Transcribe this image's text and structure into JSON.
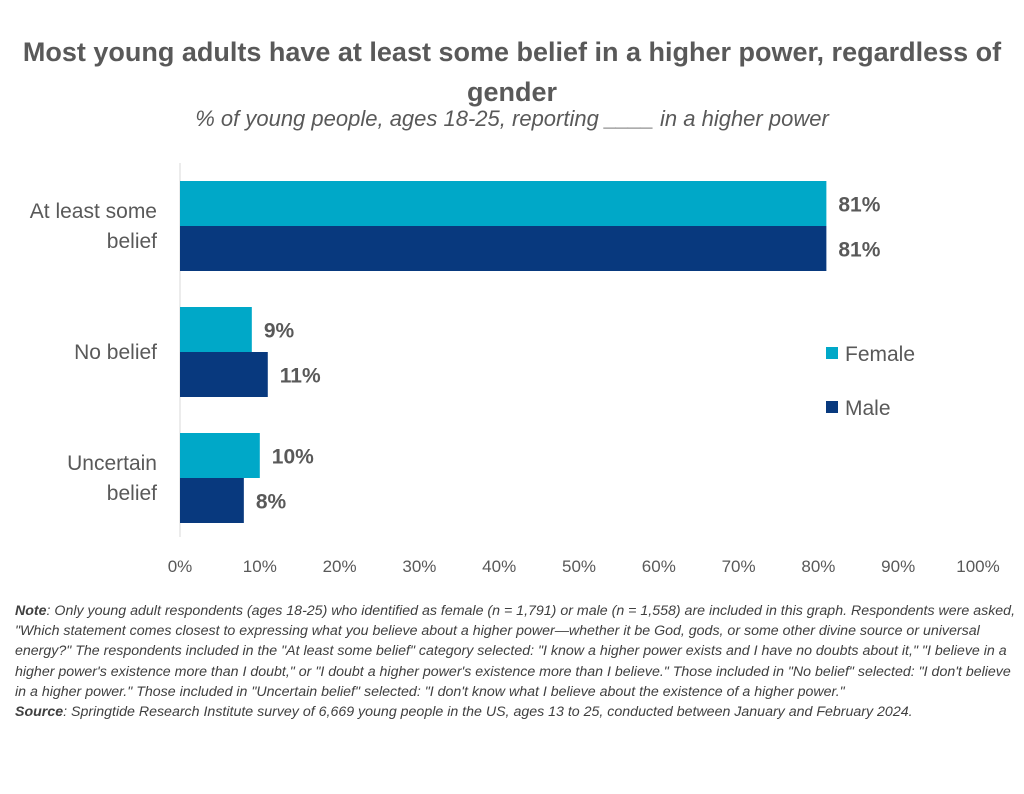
{
  "chart_data": {
    "type": "bar",
    "orientation": "horizontal",
    "title": "Most young adults have at least some belief in a higher power, regardless of gender",
    "subtitle": "% of young people, ages 18-25, reporting ____ in a higher power",
    "categories": [
      [
        "At least some",
        "belief"
      ],
      [
        "No belief"
      ],
      [
        "Uncertain",
        "belief"
      ]
    ],
    "series": [
      {
        "name": "Female",
        "color": "#00a8c8",
        "values": [
          81,
          9,
          10
        ],
        "labels": [
          "81%",
          "9%",
          "10%"
        ]
      },
      {
        "name": "Male",
        "color": "#08397e",
        "values": [
          81,
          11,
          8
        ],
        "labels": [
          "81%",
          "11%",
          "8%"
        ]
      }
    ],
    "xlim": [
      0,
      100
    ],
    "xticks": [
      "0%",
      "10%",
      "20%",
      "30%",
      "40%",
      "50%",
      "60%",
      "70%",
      "80%",
      "90%",
      "100%"
    ],
    "legend_position": "right",
    "grid": false
  },
  "notes": {
    "note_label": "Note",
    "note_text": ": Only young adult respondents (ages 18-25) who identified as female (n = 1,791) or male (n = 1,558) are included in this graph. Respondents were asked, \"Which statement comes closest to expressing what you believe about a higher power—whether it be God, gods, or some other divine source or universal energy?\" The respondents included in the \"At least some belief\" category selected: \"I know a higher power exists and I have no doubts about it,\" \"I believe in a higher power's existence more than I doubt,\" or \"I doubt a higher power's existence more than I believe.\" Those included in \"No belief\" selected: \"I don't believe in a higher power.\" Those included in \"Uncertain belief\" selected: \"I don't know what I believe about the existence of a higher power.\"",
    "source_label": "Source",
    "source_text": ": Springtide Research Institute survey of 6,669 young people in the US, ages 13 to 25, conducted between January and February 2024."
  }
}
